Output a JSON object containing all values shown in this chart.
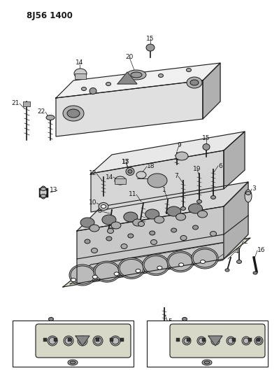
{
  "title": "8J56 1400",
  "bg": "#ffffff",
  "lc": "#1a1a1a",
  "figsize": [
    3.99,
    5.33
  ],
  "dpi": 100,
  "gray_fill": "#e0e0e0",
  "gray_dark": "#b0b0b0",
  "gray_light": "#f0f0f0",
  "gasket_fill": "#d8d8c8"
}
